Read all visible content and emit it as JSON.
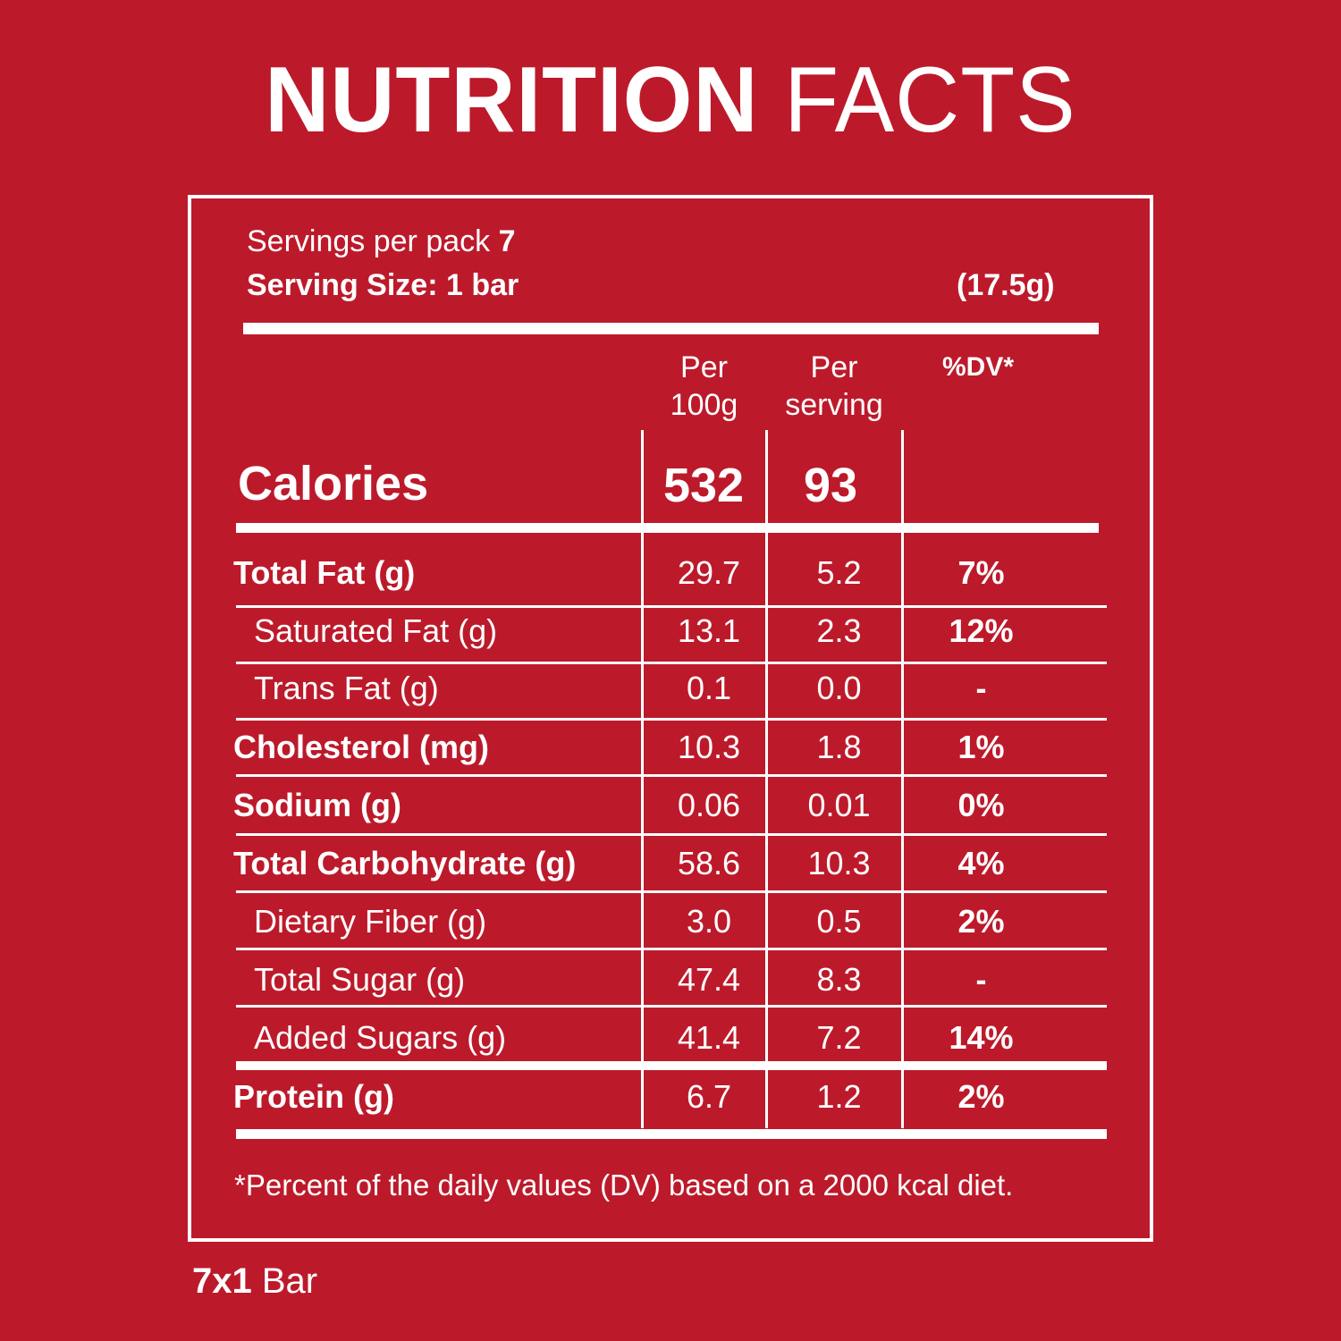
{
  "title": {
    "bold": "NUTRITION",
    "light": "FACTS"
  },
  "servings": {
    "per_pack_label": "Servings per pack",
    "per_pack_value": "7",
    "size_label": "Serving Size: 1 bar",
    "size_weight": "(17.5g)"
  },
  "columns": {
    "per100": {
      "line1": "Per",
      "line2": "100g"
    },
    "serving": {
      "line1": "Per",
      "line2": "serving"
    },
    "dv": "%DV*"
  },
  "calories": {
    "label": "Calories",
    "per100": "532",
    "serving": "93",
    "dv": ""
  },
  "rows": [
    {
      "label": "Total Fat (g)",
      "per100": "29.7",
      "serving": "5.2",
      "dv": "7%"
    },
    {
      "label": "Saturated Fat (g)",
      "per100": "13.1",
      "serving": "2.3",
      "dv": "12%"
    },
    {
      "label": "Trans Fat (g)",
      "per100": "0.1",
      "serving": "0.0",
      "dv": "-"
    },
    {
      "label": "Cholesterol (mg)",
      "per100": "10.3",
      "serving": "1.8",
      "dv": "1%"
    },
    {
      "label": "Sodium (g)",
      "per100": "0.06",
      "serving": "0.01",
      "dv": "0%"
    },
    {
      "label": "Total Carbohydrate (g)",
      "per100": "58.6",
      "serving": "10.3",
      "dv": "4%"
    },
    {
      "label": "Dietary Fiber (g)",
      "per100": "3.0",
      "serving": "0.5",
      "dv": "2%"
    },
    {
      "label": "Total Sugar (g)",
      "per100": "47.4",
      "serving": "8.3",
      "dv": "-"
    },
    {
      "label": "Added Sugars (g)",
      "per100": "41.4",
      "serving": "7.2",
      "dv": "14%"
    },
    {
      "label": "Protein (g)",
      "per100": "6.7",
      "serving": "1.2",
      "dv": "2%"
    }
  ],
  "footnote": "*Percent of the daily values (DV) based on a 2000 kcal diet.",
  "pack_label": {
    "count": "7x1",
    "unit": "Bar"
  },
  "colors": {
    "background": "#bc1a2b",
    "foreground": "#ffffff"
  }
}
